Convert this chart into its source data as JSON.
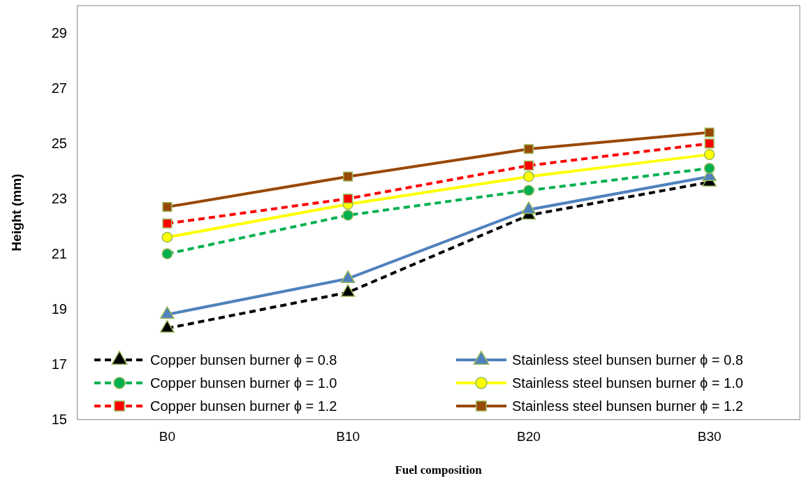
{
  "chart_data": {
    "type": "line",
    "xlabel": "Fuel composition",
    "ylabel": "Height (mm)",
    "categories": [
      "B0",
      "B10",
      "B20",
      "B30"
    ],
    "ylim": [
      15,
      30
    ],
    "yticks": [
      15,
      17,
      19,
      21,
      23,
      25,
      27,
      29
    ],
    "grid": false,
    "legend": "bottom",
    "series": [
      {
        "name": "Copper bunsen burner ϕ = 0.8",
        "color": "#000000",
        "line_style": "dashed",
        "marker": "triangle",
        "values": [
          18.3,
          19.6,
          22.4,
          23.6
        ]
      },
      {
        "name": "Stainless steel bunsen burner ϕ = 0.8",
        "color": "#4f81bd",
        "line_style": "solid",
        "marker": "triangle",
        "values": [
          18.8,
          20.1,
          22.6,
          23.8
        ]
      },
      {
        "name": "Copper bunsen burner ϕ  = 1.0",
        "color": "#00b050",
        "line_style": "dashed",
        "marker": "circle",
        "values": [
          21.0,
          22.4,
          23.3,
          24.1
        ]
      },
      {
        "name": "Stainless steel bunsen burner ϕ  = 1.0",
        "color": "#ffff00",
        "line_style": "solid",
        "marker": "circle",
        "values": [
          21.6,
          22.8,
          23.8,
          24.6
        ]
      },
      {
        "name": "Copper bunsen burner ϕ  = 1.2",
        "color": "#ff0000",
        "line_style": "dashed",
        "marker": "square",
        "values": [
          22.1,
          23.0,
          24.2,
          25.0
        ]
      },
      {
        "name": "Stainless steel bunsen burner ϕ  = 1.2",
        "color": "#984807",
        "line_style": "solid",
        "marker": "square",
        "values": [
          22.7,
          23.8,
          24.8,
          25.4
        ]
      }
    ]
  }
}
